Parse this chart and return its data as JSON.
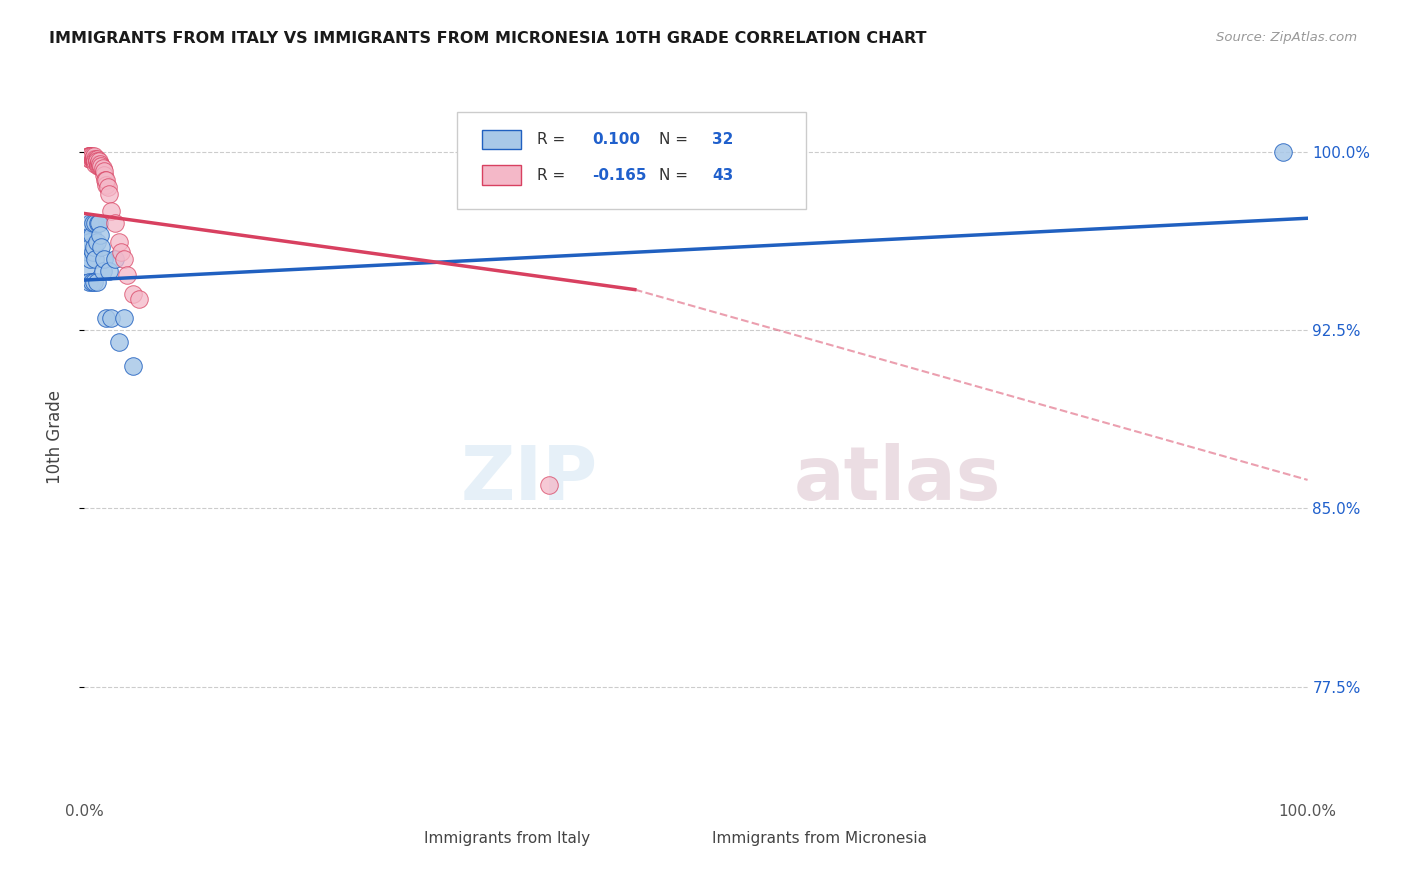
{
  "title": "IMMIGRANTS FROM ITALY VS IMMIGRANTS FROM MICRONESIA 10TH GRADE CORRELATION CHART",
  "source": "Source: ZipAtlas.com",
  "ylabel": "10th Grade",
  "xlim": [
    0,
    1.0
  ],
  "ylim": [
    0.73,
    1.03
  ],
  "yticks": [
    0.775,
    0.85,
    0.925,
    1.0
  ],
  "ytick_labels": [
    "77.5%",
    "85.0%",
    "92.5%",
    "100.0%"
  ],
  "xtick_positions": [
    0.0,
    0.1,
    0.2,
    0.3,
    0.4,
    0.5,
    0.6,
    0.7,
    0.8,
    0.9,
    1.0
  ],
  "xtick_labels": [
    "0.0%",
    "",
    "",
    "",
    "",
    "",
    "",
    "",
    "",
    "",
    "100.0%"
  ],
  "color_italy": "#a8c8e8",
  "color_micronesia": "#f4b8c8",
  "line_color_italy": "#2060c0",
  "line_color_micronesia": "#d84060",
  "R_italy": 0.1,
  "N_italy": 32,
  "R_micronesia": -0.165,
  "N_micronesia": 43,
  "italy_x": [
    0.002,
    0.003,
    0.003,
    0.004,
    0.004,
    0.005,
    0.005,
    0.005,
    0.006,
    0.006,
    0.007,
    0.007,
    0.008,
    0.008,
    0.009,
    0.009,
    0.01,
    0.01,
    0.011,
    0.012,
    0.013,
    0.014,
    0.015,
    0.016,
    0.018,
    0.02,
    0.022,
    0.025,
    0.028,
    0.032,
    0.04,
    0.98
  ],
  "italy_y": [
    0.952,
    0.958,
    0.964,
    0.945,
    0.962,
    0.955,
    0.97,
    0.96,
    0.965,
    0.945,
    0.958,
    0.97,
    0.96,
    0.945,
    0.97,
    0.955,
    0.962,
    0.945,
    0.97,
    0.97,
    0.965,
    0.96,
    0.95,
    0.955,
    0.93,
    0.95,
    0.93,
    0.955,
    0.92,
    0.93,
    0.91,
    1.0
  ],
  "micronesia_x": [
    0.003,
    0.004,
    0.004,
    0.005,
    0.005,
    0.005,
    0.006,
    0.006,
    0.007,
    0.007,
    0.008,
    0.008,
    0.008,
    0.009,
    0.009,
    0.009,
    0.01,
    0.01,
    0.01,
    0.011,
    0.011,
    0.012,
    0.012,
    0.013,
    0.013,
    0.014,
    0.015,
    0.016,
    0.016,
    0.017,
    0.018,
    0.018,
    0.019,
    0.02,
    0.022,
    0.025,
    0.028,
    0.03,
    0.032,
    0.035,
    0.04,
    0.045,
    0.38
  ],
  "micronesia_y": [
    0.998,
    0.998,
    0.998,
    0.997,
    0.998,
    0.997,
    0.997,
    0.998,
    0.997,
    0.997,
    0.997,
    0.997,
    0.998,
    0.995,
    0.997,
    0.996,
    0.996,
    0.997,
    0.996,
    0.995,
    0.994,
    0.994,
    0.996,
    0.994,
    0.995,
    0.994,
    0.993,
    0.99,
    0.992,
    0.988,
    0.986,
    0.988,
    0.985,
    0.982,
    0.975,
    0.97,
    0.962,
    0.958,
    0.955,
    0.948,
    0.94,
    0.938,
    0.86
  ],
  "line_italy_x0": 0.0,
  "line_italy_x1": 1.0,
  "line_italy_y0": 0.946,
  "line_italy_y1": 0.972,
  "line_mic_solid_x0": 0.0,
  "line_mic_solid_x1": 0.45,
  "line_mic_solid_y0": 0.974,
  "line_mic_solid_y1": 0.942,
  "line_mic_dash_x0": 0.45,
  "line_mic_dash_x1": 1.0,
  "line_mic_dash_y0": 0.942,
  "line_mic_dash_y1": 0.862
}
